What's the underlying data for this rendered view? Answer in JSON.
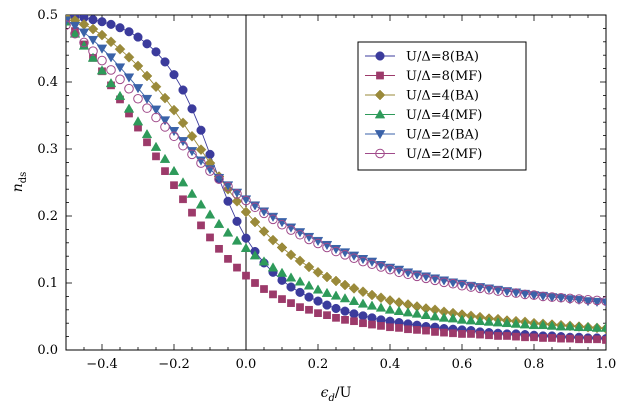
{
  "chart_data": {
    "type": "scatter",
    "xlabel": "ε_d/U",
    "ylabel": "n_ds",
    "xlim": [
      -0.5,
      1.0
    ],
    "ylim": [
      0.0,
      0.5
    ],
    "xticks": [
      -0.4,
      -0.2,
      0.0,
      0.2,
      0.4,
      0.6,
      0.8,
      1.0
    ],
    "xtick_labels": [
      "−0.4",
      "−0.2",
      "0.0",
      "0.2",
      "0.4",
      "0.6",
      "0.8",
      "1.0"
    ],
    "yticks": [
      0.0,
      0.1,
      0.2,
      0.3,
      0.4,
      0.5
    ],
    "ytick_labels": [
      "0.0",
      "0.1",
      "0.2",
      "0.3",
      "0.4",
      "0.5"
    ],
    "vertical_line_x": 0.0,
    "legend_position": "top-right",
    "grid": false,
    "x": [
      -0.5,
      -0.475,
      -0.45,
      -0.425,
      -0.4,
      -0.375,
      -0.35,
      -0.325,
      -0.3,
      -0.275,
      -0.25,
      -0.225,
      -0.2,
      -0.175,
      -0.15,
      -0.125,
      -0.1,
      -0.075,
      -0.05,
      -0.025,
      0.0,
      0.025,
      0.05,
      0.075,
      0.1,
      0.125,
      0.15,
      0.175,
      0.2,
      0.225,
      0.25,
      0.275,
      0.3,
      0.325,
      0.35,
      0.375,
      0.4,
      0.425,
      0.45,
      0.475,
      0.5,
      0.525,
      0.55,
      0.575,
      0.6,
      0.625,
      0.65,
      0.675,
      0.7,
      0.725,
      0.75,
      0.775,
      0.8,
      0.825,
      0.85,
      0.875,
      0.9,
      0.925,
      0.95,
      0.975,
      1.0
    ],
    "series": [
      {
        "name": "U/Δ=8(BA)",
        "marker": "circle",
        "filled": true,
        "color": "#3b3b9c",
        "line": true,
        "values": [
          0.5,
          0.498,
          0.496,
          0.493,
          0.49,
          0.486,
          0.481,
          0.475,
          0.467,
          0.457,
          0.445,
          0.43,
          0.411,
          0.388,
          0.36,
          0.328,
          0.292,
          0.256,
          0.222,
          0.192,
          0.167,
          0.147,
          0.13,
          0.116,
          0.104,
          0.094,
          0.086,
          0.079,
          0.073,
          0.067,
          0.062,
          0.058,
          0.054,
          0.051,
          0.048,
          0.045,
          0.043,
          0.041,
          0.039,
          0.037,
          0.035,
          0.034,
          0.032,
          0.031,
          0.03,
          0.029,
          0.027,
          0.026,
          0.025,
          0.024,
          0.024,
          0.023,
          0.022,
          0.021,
          0.021,
          0.02,
          0.019,
          0.019,
          0.018,
          0.018,
          0.017
        ]
      },
      {
        "name": "U/Δ=8(MF)",
        "marker": "square",
        "filled": true,
        "color": "#9c3a6a",
        "line": false,
        "values": [
          0.495,
          0.476,
          0.456,
          0.436,
          0.416,
          0.395,
          0.374,
          0.353,
          0.332,
          0.31,
          0.289,
          0.267,
          0.246,
          0.225,
          0.205,
          0.186,
          0.168,
          0.151,
          0.136,
          0.123,
          0.111,
          0.1,
          0.091,
          0.083,
          0.076,
          0.07,
          0.064,
          0.06,
          0.055,
          0.052,
          0.048,
          0.045,
          0.043,
          0.04,
          0.038,
          0.036,
          0.034,
          0.033,
          0.031,
          0.03,
          0.029,
          0.027,
          0.026,
          0.025,
          0.024,
          0.024,
          0.023,
          0.022,
          0.021,
          0.021,
          0.02,
          0.019,
          0.019,
          0.018,
          0.018,
          0.017,
          0.017,
          0.016,
          0.016,
          0.016,
          0.015
        ]
      },
      {
        "name": "U/Δ=4(BA)",
        "marker": "diamond",
        "filled": true,
        "color": "#9a8a3a",
        "line": true,
        "values": [
          0.497,
          0.492,
          0.486,
          0.479,
          0.47,
          0.46,
          0.449,
          0.437,
          0.424,
          0.409,
          0.393,
          0.376,
          0.358,
          0.339,
          0.319,
          0.299,
          0.279,
          0.259,
          0.24,
          0.222,
          0.206,
          0.191,
          0.177,
          0.164,
          0.153,
          0.142,
          0.133,
          0.124,
          0.116,
          0.109,
          0.103,
          0.097,
          0.092,
          0.087,
          0.082,
          0.078,
          0.074,
          0.071,
          0.068,
          0.065,
          0.062,
          0.06,
          0.057,
          0.055,
          0.053,
          0.051,
          0.049,
          0.047,
          0.046,
          0.044,
          0.043,
          0.042,
          0.04,
          0.039,
          0.038,
          0.037,
          0.036,
          0.035,
          0.034,
          0.033,
          0.032
        ]
      },
      {
        "name": "U/Δ=4(MF)",
        "marker": "triangle-up",
        "filled": true,
        "color": "#2e9a5a",
        "line": false,
        "values": [
          0.49,
          0.472,
          0.454,
          0.436,
          0.417,
          0.398,
          0.379,
          0.36,
          0.341,
          0.322,
          0.303,
          0.285,
          0.267,
          0.25,
          0.233,
          0.217,
          0.202,
          0.188,
          0.175,
          0.163,
          0.152,
          0.141,
          0.132,
          0.123,
          0.115,
          0.108,
          0.102,
          0.096,
          0.09,
          0.085,
          0.081,
          0.077,
          0.073,
          0.069,
          0.066,
          0.063,
          0.06,
          0.058,
          0.056,
          0.054,
          0.052,
          0.05,
          0.048,
          0.047,
          0.045,
          0.044,
          0.043,
          0.042,
          0.041,
          0.04,
          0.039,
          0.038,
          0.037,
          0.037,
          0.036,
          0.035,
          0.035,
          0.034,
          0.034,
          0.033,
          0.033
        ]
      },
      {
        "name": "U/Δ=2(BA)",
        "marker": "triangle-down",
        "filled": true,
        "color": "#3a62a8",
        "line": true,
        "values": [
          0.492,
          0.484,
          0.474,
          0.463,
          0.45,
          0.437,
          0.422,
          0.407,
          0.391,
          0.375,
          0.359,
          0.343,
          0.327,
          0.312,
          0.297,
          0.283,
          0.27,
          0.257,
          0.246,
          0.235,
          0.225,
          0.216,
          0.207,
          0.199,
          0.191,
          0.183,
          0.176,
          0.169,
          0.163,
          0.157,
          0.151,
          0.146,
          0.141,
          0.136,
          0.132,
          0.127,
          0.123,
          0.12,
          0.116,
          0.113,
          0.11,
          0.107,
          0.104,
          0.101,
          0.099,
          0.096,
          0.094,
          0.092,
          0.09,
          0.088,
          0.086,
          0.084,
          0.082,
          0.081,
          0.079,
          0.078,
          0.076,
          0.075,
          0.073,
          0.072,
          0.071
        ]
      },
      {
        "name": "U/Δ=2(MF)",
        "marker": "circle",
        "filled": false,
        "color": "#a04a8a",
        "line": false,
        "values": [
          0.485,
          0.472,
          0.459,
          0.446,
          0.432,
          0.418,
          0.404,
          0.39,
          0.375,
          0.361,
          0.347,
          0.333,
          0.319,
          0.305,
          0.292,
          0.279,
          0.267,
          0.255,
          0.244,
          0.233,
          0.223,
          0.213,
          0.204,
          0.195,
          0.187,
          0.179,
          0.172,
          0.165,
          0.159,
          0.153,
          0.147,
          0.142,
          0.137,
          0.132,
          0.128,
          0.124,
          0.12,
          0.116,
          0.113,
          0.11,
          0.107,
          0.104,
          0.101,
          0.099,
          0.096,
          0.094,
          0.092,
          0.09,
          0.088,
          0.086,
          0.085,
          0.083,
          0.082,
          0.08,
          0.079,
          0.078,
          0.077,
          0.076,
          0.075,
          0.074,
          0.073
        ]
      }
    ]
  }
}
